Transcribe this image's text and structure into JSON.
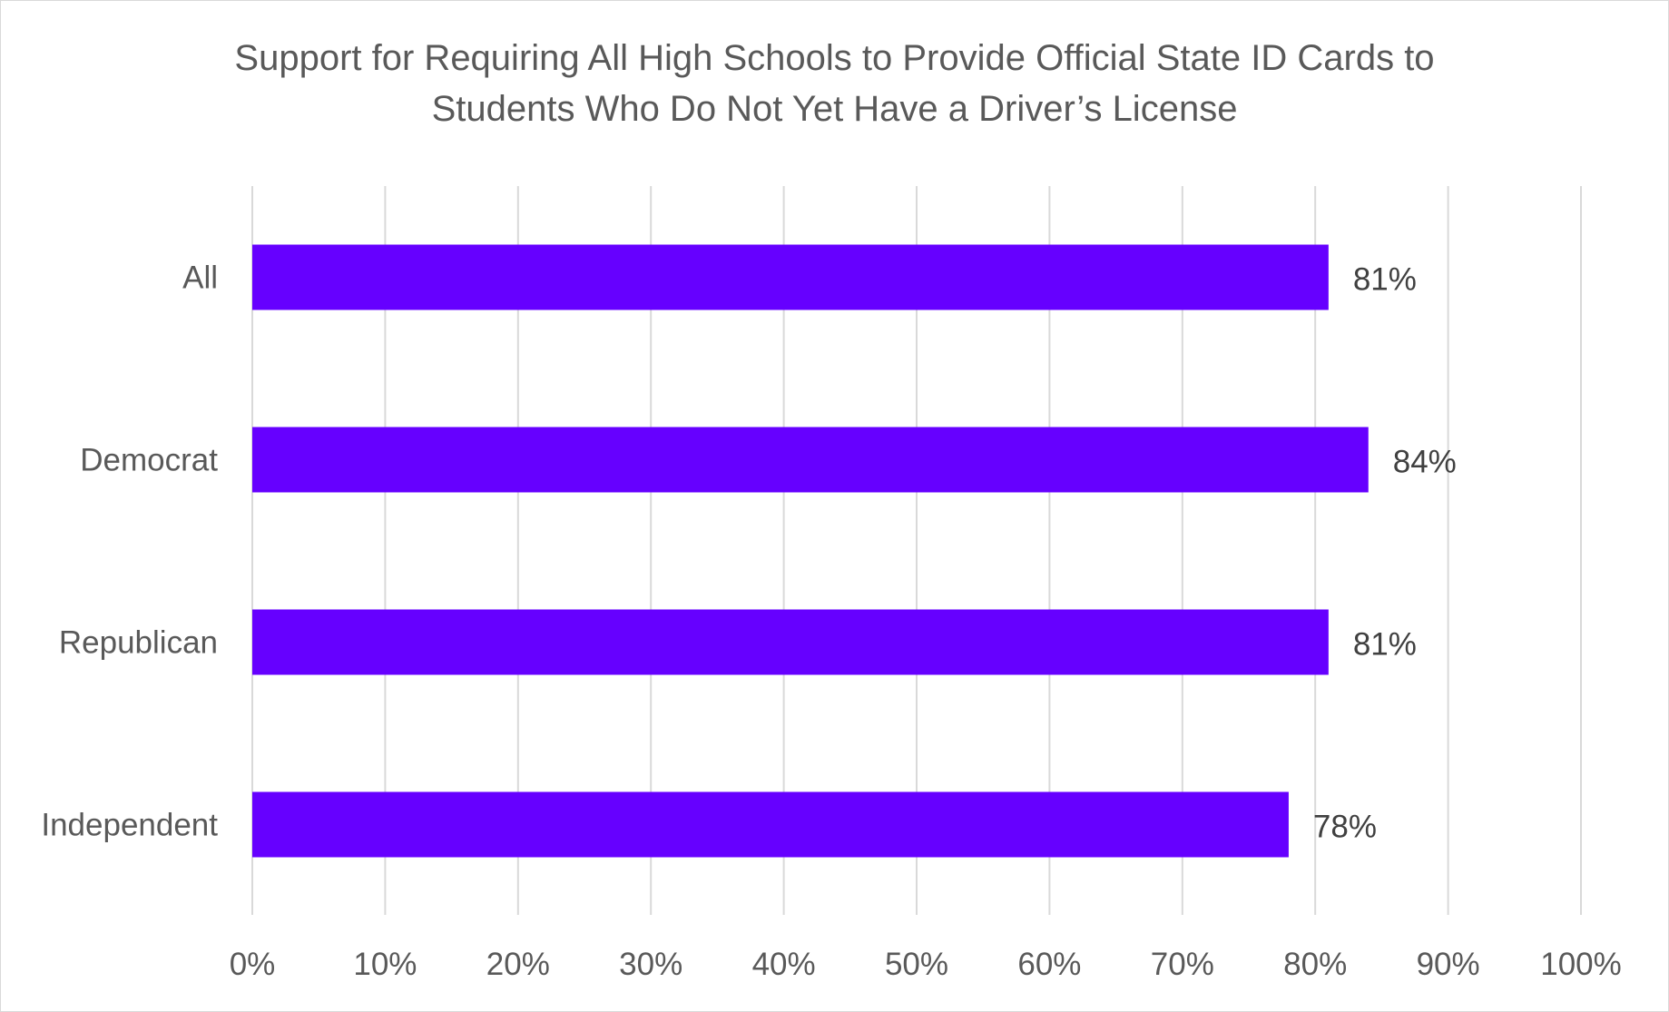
{
  "chart_data": {
    "type": "bar",
    "orientation": "horizontal",
    "title_lines": [
      "Support for Requiring All High Schools to Provide Official State ID Cards to",
      "Students Who Do Not Yet Have a Driver’s License"
    ],
    "categories": [
      "All",
      "Democrat",
      "Republican",
      "Independent"
    ],
    "values": [
      81,
      84,
      81,
      78
    ],
    "data_labels": [
      "81%",
      "84%",
      "81%",
      "78%"
    ],
    "x_ticks": [
      "0%",
      "10%",
      "20%",
      "30%",
      "40%",
      "50%",
      "60%",
      "70%",
      "80%",
      "90%",
      "100%"
    ],
    "xlim": [
      0,
      100
    ],
    "xlabel": "",
    "ylabel": "",
    "grid": "vertical",
    "legend": "none",
    "colors": {
      "bar": "#6600ff",
      "grid": "#d9d9d9",
      "text": "#595959",
      "frame": "#d9d9d9"
    }
  }
}
